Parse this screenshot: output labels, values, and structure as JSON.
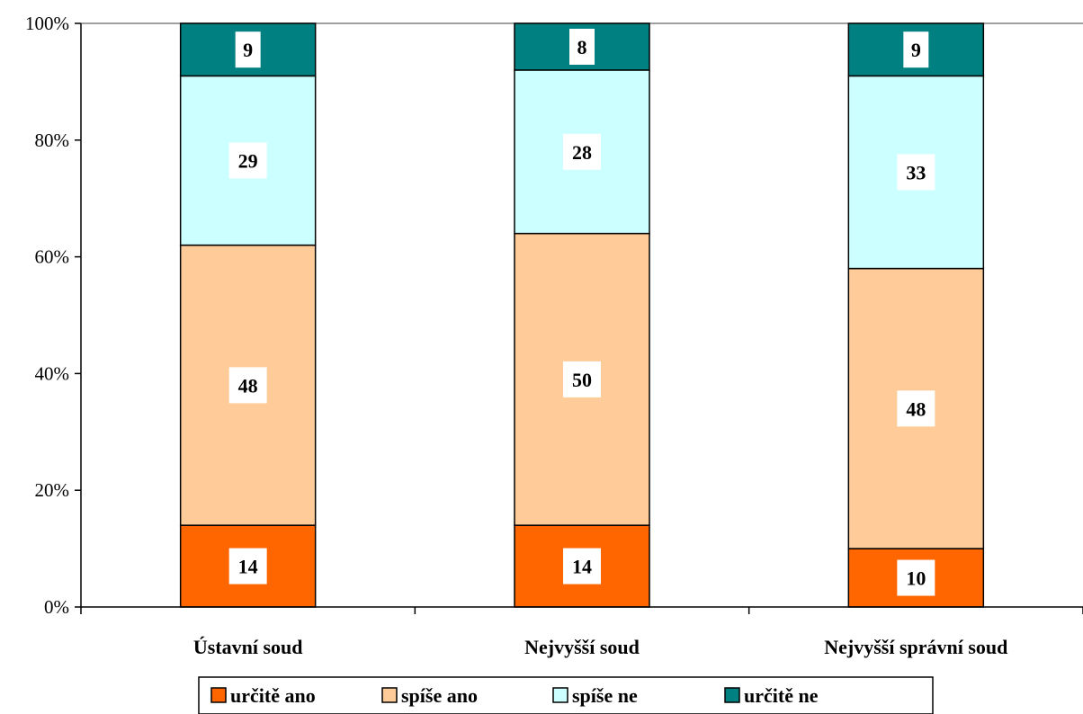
{
  "chart_data": {
    "type": "bar",
    "stacked": true,
    "percent_stacked": true,
    "categories": [
      "Ústavní soud",
      "Nejvyšší soud",
      "Nejvyšší správní soud"
    ],
    "series": [
      {
        "name": "určitě ano",
        "values": [
          14,
          14,
          10
        ],
        "color": "#FF6600"
      },
      {
        "name": "spíše ano",
        "values": [
          48,
          50,
          48
        ],
        "color": "#FFCC99"
      },
      {
        "name": "spíše ne",
        "values": [
          29,
          28,
          33
        ],
        "color": "#CCFFFF"
      },
      {
        "name": "určitě ne",
        "values": [
          9,
          8,
          9
        ],
        "color": "#008080"
      }
    ],
    "y_ticks": [
      "0%",
      "20%",
      "40%",
      "60%",
      "80%",
      "100%"
    ],
    "ylim": [
      0,
      100
    ],
    "grid": false,
    "legend_position": "bottom",
    "title": "",
    "xlabel": "",
    "ylabel": ""
  }
}
